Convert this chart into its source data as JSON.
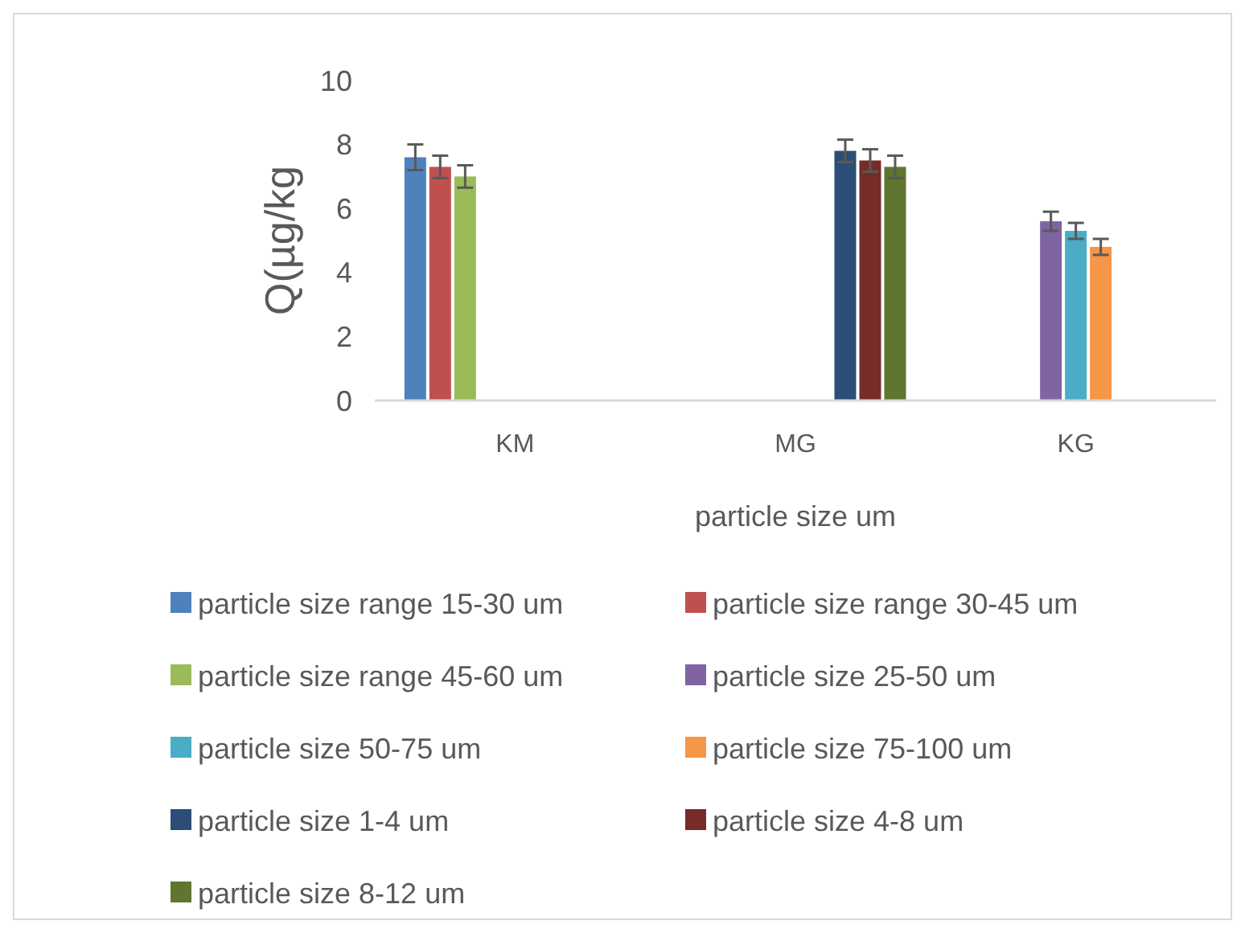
{
  "chart_data": {
    "type": "bar",
    "xlabel": "particle size um",
    "ylabel": "Q(µg/kg",
    "categories": [
      "KM",
      "MG",
      "KG"
    ],
    "ylim": [
      0,
      10
    ],
    "yticks": [
      0,
      2,
      4,
      6,
      8,
      10
    ],
    "grid": false,
    "legend": "bottom",
    "series": [
      {
        "name": "particle size range 15-30 um",
        "color": "#4f81bd",
        "values": [
          7.6,
          null,
          null
        ],
        "errors": [
          0.4,
          null,
          null
        ]
      },
      {
        "name": "particle size range 30-45 um",
        "color": "#c0504d",
        "values": [
          7.3,
          null,
          null
        ],
        "errors": [
          0.35,
          null,
          null
        ]
      },
      {
        "name": "particle size range 45-60 um",
        "color": "#9bbb59",
        "values": [
          7.0,
          null,
          null
        ],
        "errors": [
          0.35,
          null,
          null
        ]
      },
      {
        "name": "particle size 25-50 um",
        "color": "#8064a2",
        "values": [
          null,
          null,
          5.6
        ],
        "errors": [
          null,
          null,
          0.3
        ]
      },
      {
        "name": "particle size 50-75 um",
        "color": "#4bacc6",
        "values": [
          null,
          null,
          5.3
        ],
        "errors": [
          null,
          null,
          0.25
        ]
      },
      {
        "name": "particle size 75-100 um",
        "color": "#f79646",
        "values": [
          null,
          null,
          4.8
        ],
        "errors": [
          null,
          null,
          0.25
        ]
      },
      {
        "name": "particle size 1-4 um",
        "color": "#2c4d75",
        "values": [
          null,
          7.8,
          null
        ],
        "errors": [
          null,
          0.35,
          null
        ]
      },
      {
        "name": "particle size 4-8 um",
        "color": "#772c2a",
        "values": [
          null,
          7.5,
          null
        ],
        "errors": [
          null,
          0.35,
          null
        ]
      },
      {
        "name": "particle size 8-12 um",
        "color": "#5f7530",
        "values": [
          null,
          7.3,
          null
        ],
        "errors": [
          null,
          0.35,
          null
        ]
      }
    ]
  }
}
